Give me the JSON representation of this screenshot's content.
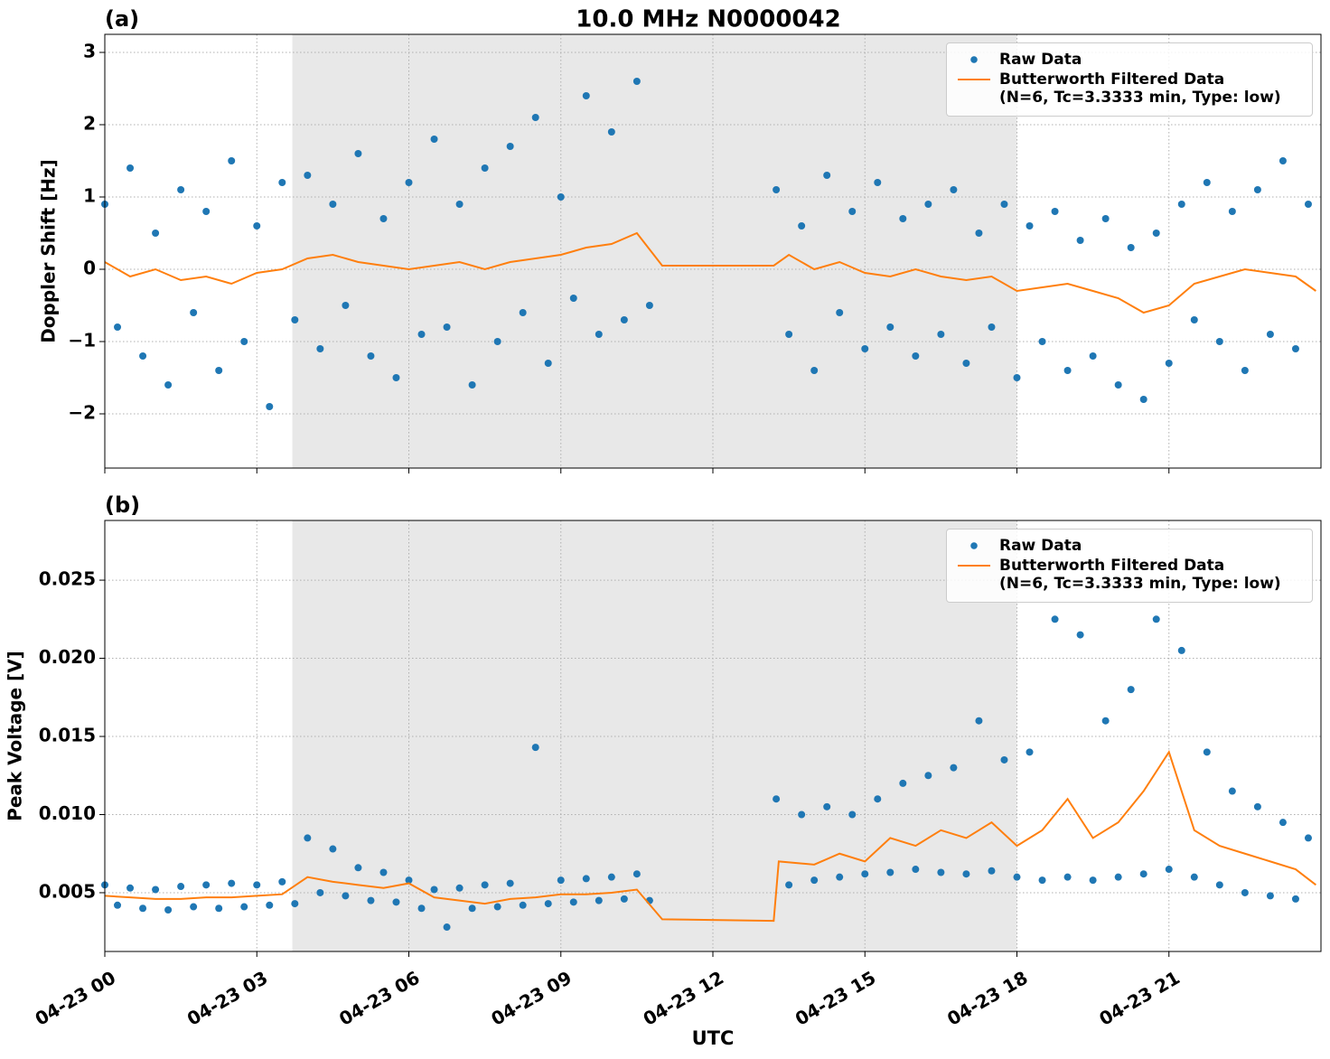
{
  "chart_data": [
    {
      "type": "scatter",
      "title": "10.0 MHz N0000042",
      "panel_label": "(a)",
      "y_label": "Doppler Shift [Hz]",
      "xlim": [
        0,
        24
      ],
      "xticks": [
        0,
        3,
        6,
        9,
        12,
        15,
        18,
        21
      ],
      "ylim": [
        -2.75,
        3.25
      ],
      "yticks": [
        {
          "value": -2,
          "label": "−2"
        },
        {
          "value": -1,
          "label": "−1"
        },
        0,
        1,
        2,
        3
      ],
      "grid": true,
      "shade": [
        3.7,
        18
      ],
      "legend": "upper right",
      "series": [
        {
          "name": "Raw Data",
          "mode": "markers",
          "color": "#1f77b4",
          "x": [
            0,
            0.25,
            0.5,
            0.75,
            1,
            1.25,
            1.5,
            1.75,
            2,
            2.25,
            2.5,
            2.75,
            3,
            3.25,
            3.5,
            3.75,
            4,
            4.25,
            4.5,
            4.75,
            5,
            5.25,
            5.5,
            5.75,
            6,
            6.25,
            6.5,
            6.75,
            7,
            7.25,
            7.5,
            7.75,
            8,
            8.25,
            8.5,
            8.75,
            9,
            9.25,
            9.5,
            9.75,
            10,
            10.25,
            10.5,
            10.75,
            13.25,
            13.5,
            13.75,
            14,
            14.25,
            14.5,
            14.75,
            15,
            15.25,
            15.5,
            15.75,
            16,
            16.25,
            16.5,
            16.75,
            17,
            17.25,
            17.5,
            17.75,
            18,
            18.25,
            18.5,
            18.75,
            19,
            19.25,
            19.5,
            19.75,
            20,
            20.25,
            20.5,
            20.75,
            21,
            21.25,
            21.5,
            21.75,
            22,
            22.25,
            22.5,
            22.75,
            23,
            23.25,
            23.5,
            23.75
          ],
          "values": [
            0.9,
            -0.8,
            1.4,
            -1.2,
            0.5,
            -1.6,
            1.1,
            -0.6,
            0.8,
            -1.4,
            1.5,
            -1.0,
            0.6,
            -1.9,
            1.2,
            -0.7,
            1.3,
            -1.1,
            0.9,
            -0.5,
            1.6,
            -1.2,
            0.7,
            -1.5,
            1.2,
            -0.9,
            1.8,
            -0.8,
            0.9,
            -1.6,
            1.4,
            -1.0,
            1.7,
            -0.6,
            2.1,
            -1.3,
            1.0,
            -0.4,
            2.4,
            -0.9,
            1.9,
            -0.7,
            2.6,
            -0.5,
            1.1,
            -0.9,
            0.6,
            -1.4,
            1.3,
            -0.6,
            0.8,
            -1.1,
            1.2,
            -0.8,
            0.7,
            -1.2,
            0.9,
            -0.9,
            1.1,
            -1.3,
            0.5,
            -0.8,
            0.9,
            -1.5,
            0.6,
            -1.0,
            0.8,
            -1.4,
            0.4,
            -1.2,
            0.7,
            -1.6,
            0.3,
            -1.8,
            0.5,
            -1.3,
            0.9,
            -0.7,
            1.2,
            -1.0,
            0.8,
            -1.4,
            1.1,
            -0.9,
            1.5,
            -1.1,
            0.9
          ]
        },
        {
          "name": "Butterworth Filtered Data\n(N=6, Tc=3.3333 min, Type: low)",
          "mode": "line",
          "color": "#ff7f0e",
          "x": [
            0,
            0.5,
            1,
            1.5,
            2,
            2.5,
            3,
            3.5,
            4,
            4.5,
            5,
            5.5,
            6,
            6.5,
            7,
            7.5,
            8,
            8.5,
            9,
            9.5,
            10,
            10.5,
            11,
            13.2,
            13.5,
            14,
            14.5,
            15,
            15.5,
            16,
            16.5,
            17,
            17.5,
            18,
            18.5,
            19,
            19.5,
            20,
            20.5,
            21,
            21.5,
            22,
            22.5,
            23,
            23.5,
            23.9
          ],
          "values": [
            0.1,
            -0.1,
            0.0,
            -0.15,
            -0.1,
            -0.2,
            -0.05,
            0.0,
            0.15,
            0.2,
            0.1,
            0.05,
            0.0,
            0.05,
            0.1,
            0.0,
            0.1,
            0.15,
            0.2,
            0.3,
            0.35,
            0.5,
            0.05,
            0.05,
            0.2,
            0.0,
            0.1,
            -0.05,
            -0.1,
            0.0,
            -0.1,
            -0.15,
            -0.1,
            -0.3,
            -0.25,
            -0.2,
            -0.3,
            -0.4,
            -0.6,
            -0.5,
            -0.2,
            -0.1,
            0.0,
            -0.05,
            -0.1,
            -0.3
          ]
        }
      ]
    },
    {
      "type": "scatter",
      "panel_label": "(b)",
      "y_label": "Peak Voltage [V]",
      "x_label": "UTC",
      "xlim": [
        0,
        24
      ],
      "xticks": [
        {
          "value": 0,
          "label": "04-23 00"
        },
        {
          "value": 3,
          "label": "04-23 03"
        },
        {
          "value": 6,
          "label": "04-23 06"
        },
        {
          "value": 9,
          "label": "04-23 09"
        },
        {
          "value": 12,
          "label": "04-23 12"
        },
        {
          "value": 15,
          "label": "04-23 15"
        },
        {
          "value": 18,
          "label": "04-23 18"
        },
        {
          "value": 21,
          "label": "04-23 21"
        }
      ],
      "ylim": [
        0.00124,
        0.02882
      ],
      "yticks": [
        0.005,
        {
          "value": 0.01,
          "label": "0.010"
        },
        0.015,
        {
          "value": 0.02,
          "label": "0.020"
        },
        0.025
      ],
      "grid": true,
      "shade": [
        3.7,
        18
      ],
      "legend": "upper right",
      "series": [
        {
          "name": "Raw Data",
          "mode": "markers",
          "color": "#1f77b4",
          "x": [
            0,
            0.25,
            0.5,
            0.75,
            1,
            1.25,
            1.5,
            1.75,
            2,
            2.25,
            2.5,
            2.75,
            3,
            3.25,
            3.5,
            3.75,
            4,
            4.25,
            4.5,
            4.75,
            5,
            5.25,
            5.5,
            5.75,
            6,
            6.25,
            6.5,
            6.75,
            7,
            7.25,
            7.5,
            7.75,
            8,
            8.25,
            8.5,
            8.75,
            9,
            9.25,
            9.5,
            9.75,
            10,
            10.25,
            10.5,
            10.75,
            13.25,
            13.5,
            13.75,
            14,
            14.25,
            14.5,
            14.75,
            15,
            15.25,
            15.5,
            15.75,
            16,
            16.25,
            16.5,
            16.75,
            17,
            17.25,
            17.5,
            17.75,
            18,
            18.25,
            18.5,
            18.75,
            19,
            19.25,
            19.5,
            19.75,
            20,
            20.25,
            20.5,
            20.75,
            21,
            21.25,
            21.5,
            21.75,
            22,
            22.25,
            22.5,
            22.75,
            23,
            23.25,
            23.5,
            23.75
          ],
          "values": [
            0.0055,
            0.0042,
            0.0053,
            0.004,
            0.0052,
            0.0039,
            0.0054,
            0.0041,
            0.0055,
            0.004,
            0.0056,
            0.0041,
            0.0055,
            0.0042,
            0.0057,
            0.0043,
            0.0085,
            0.005,
            0.0078,
            0.0048,
            0.0066,
            0.0045,
            0.0063,
            0.0044,
            0.0058,
            0.004,
            0.0052,
            0.0028,
            0.0053,
            0.004,
            0.0055,
            0.0041,
            0.0056,
            0.0042,
            0.0143,
            0.0043,
            0.0058,
            0.0044,
            0.0059,
            0.0045,
            0.006,
            0.0046,
            0.0062,
            0.0045,
            0.011,
            0.0055,
            0.01,
            0.0058,
            0.0105,
            0.006,
            0.01,
            0.0062,
            0.011,
            0.0063,
            0.012,
            0.0065,
            0.0125,
            0.0063,
            0.013,
            0.0062,
            0.016,
            0.0064,
            0.0135,
            0.006,
            0.014,
            0.0058,
            0.0225,
            0.006,
            0.0215,
            0.0058,
            0.016,
            0.006,
            0.018,
            0.0062,
            0.0225,
            0.0065,
            0.0205,
            0.006,
            0.014,
            0.0055,
            0.0115,
            0.005,
            0.0105,
            0.0048,
            0.0095,
            0.0046,
            0.0085
          ]
        },
        {
          "name": "Butterworth Filtered Data\n(N=6, Tc=3.3333 min, Type: low)",
          "mode": "line",
          "color": "#ff7f0e",
          "x": [
            0,
            0.5,
            1,
            1.5,
            2,
            2.5,
            3,
            3.5,
            4,
            4.5,
            5,
            5.5,
            6,
            6.5,
            7,
            7.5,
            8,
            8.5,
            9,
            9.5,
            10,
            10.5,
            11,
            13.2,
            13.3,
            14,
            14.5,
            15,
            15.5,
            16,
            16.5,
            17,
            17.5,
            18,
            18.5,
            19,
            19.5,
            20,
            20.5,
            21,
            21.5,
            22,
            22.5,
            23,
            23.5,
            23.9
          ],
          "values": [
            0.0048,
            0.0047,
            0.0046,
            0.0046,
            0.0047,
            0.0047,
            0.0048,
            0.0049,
            0.006,
            0.0057,
            0.0055,
            0.0053,
            0.0056,
            0.0047,
            0.0045,
            0.0043,
            0.0046,
            0.0047,
            0.0049,
            0.0049,
            0.005,
            0.0052,
            0.0033,
            0.0032,
            0.007,
            0.0068,
            0.0075,
            0.007,
            0.0085,
            0.008,
            0.009,
            0.0085,
            0.0095,
            0.008,
            0.009,
            0.011,
            0.0085,
            0.0095,
            0.0115,
            0.014,
            0.009,
            0.008,
            0.0075,
            0.007,
            0.0065,
            0.0055
          ]
        }
      ]
    }
  ]
}
